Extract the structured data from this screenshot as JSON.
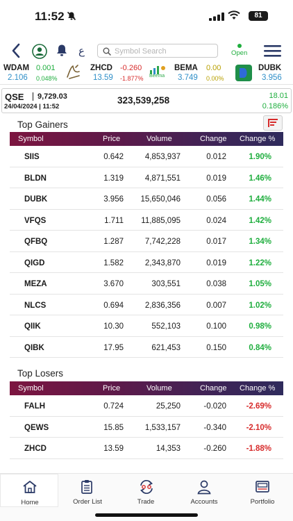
{
  "status_bar": {
    "time": "11:52",
    "battery": "81"
  },
  "header": {
    "arabic_toggle": "ع",
    "search_placeholder": "Symbol Search",
    "market_status": "Open"
  },
  "ticker": [
    {
      "symbol": "WDAM",
      "price": "2.106",
      "change": "0.001",
      "change_pct": "0.048%",
      "trend": "up"
    },
    {
      "symbol": "ZHCD",
      "price": "13.59",
      "change": "-0.260",
      "change_pct": "-1.877%",
      "trend": "down"
    },
    {
      "symbol": "BEMA",
      "price": "3.749",
      "change": "0.00",
      "change_pct": "0.00%",
      "trend": "flat",
      "logo_text": "Beema"
    },
    {
      "symbol": "DUBK",
      "price": "3.956",
      "change": "",
      "change_pct": "",
      "trend": "up"
    }
  ],
  "index": {
    "name": "QSE",
    "value": "9,729.03",
    "date": "24/04/2024 | 11:52",
    "volume": "323,539,258",
    "change": "18.01",
    "change_pct": "0.186%"
  },
  "table_headers": {
    "symbol": "Symbol",
    "price": "Price",
    "volume": "Volume",
    "change": "Change",
    "change_pct": "Change %"
  },
  "top_gainers": {
    "title": "Top Gainers",
    "rows": [
      {
        "symbol": "SIIS",
        "price": "0.642",
        "volume": "4,853,937",
        "change": "0.012",
        "change_pct": "1.90%"
      },
      {
        "symbol": "BLDN",
        "price": "1.319",
        "volume": "4,871,551",
        "change": "0.019",
        "change_pct": "1.46%"
      },
      {
        "symbol": "DUBK",
        "price": "3.956",
        "volume": "15,650,046",
        "change": "0.056",
        "change_pct": "1.44%"
      },
      {
        "symbol": "VFQS",
        "price": "1.711",
        "volume": "11,885,095",
        "change": "0.024",
        "change_pct": "1.42%"
      },
      {
        "symbol": "QFBQ",
        "price": "1.287",
        "volume": "7,742,228",
        "change": "0.017",
        "change_pct": "1.34%"
      },
      {
        "symbol": "QIGD",
        "price": "1.582",
        "volume": "2,343,870",
        "change": "0.019",
        "change_pct": "1.22%"
      },
      {
        "symbol": "MEZA",
        "price": "3.670",
        "volume": "303,551",
        "change": "0.038",
        "change_pct": "1.05%"
      },
      {
        "symbol": "NLCS",
        "price": "0.694",
        "volume": "2,836,356",
        "change": "0.007",
        "change_pct": "1.02%"
      },
      {
        "symbol": "QIIK",
        "price": "10.30",
        "volume": "552,103",
        "change": "0.100",
        "change_pct": "0.98%"
      },
      {
        "symbol": "QIBK",
        "price": "17.95",
        "volume": "621,453",
        "change": "0.150",
        "change_pct": "0.84%"
      }
    ]
  },
  "top_losers": {
    "title": "Top Losers",
    "rows": [
      {
        "symbol": "FALH",
        "price": "0.724",
        "volume": "25,250",
        "change": "-0.020",
        "change_pct": "-2.69%"
      },
      {
        "symbol": "QEWS",
        "price": "15.85",
        "volume": "1,533,157",
        "change": "-0.340",
        "change_pct": "-2.10%"
      },
      {
        "symbol": "ZHCD",
        "price": "13.59",
        "volume": "14,353",
        "change": "-0.260",
        "change_pct": "-1.88%"
      }
    ]
  },
  "bottom_nav": [
    {
      "label": "Home",
      "icon": "home-icon",
      "active": true
    },
    {
      "label": "Order List",
      "icon": "clipboard-icon",
      "active": false
    },
    {
      "label": "Trade",
      "icon": "trade-icon",
      "active": false
    },
    {
      "label": "Accounts",
      "icon": "user-icon",
      "active": false
    },
    {
      "label": "Portfolio",
      "icon": "briefcase-icon",
      "active": false
    }
  ],
  "colors": {
    "gain": "#1fae3e",
    "loss": "#d72b2b",
    "flat": "#b8a000",
    "price_blue": "#2f8fc8",
    "header_gradient_start": "#7c1540",
    "header_gradient_end": "#2f2b5c",
    "accent": "#2b3a67"
  }
}
